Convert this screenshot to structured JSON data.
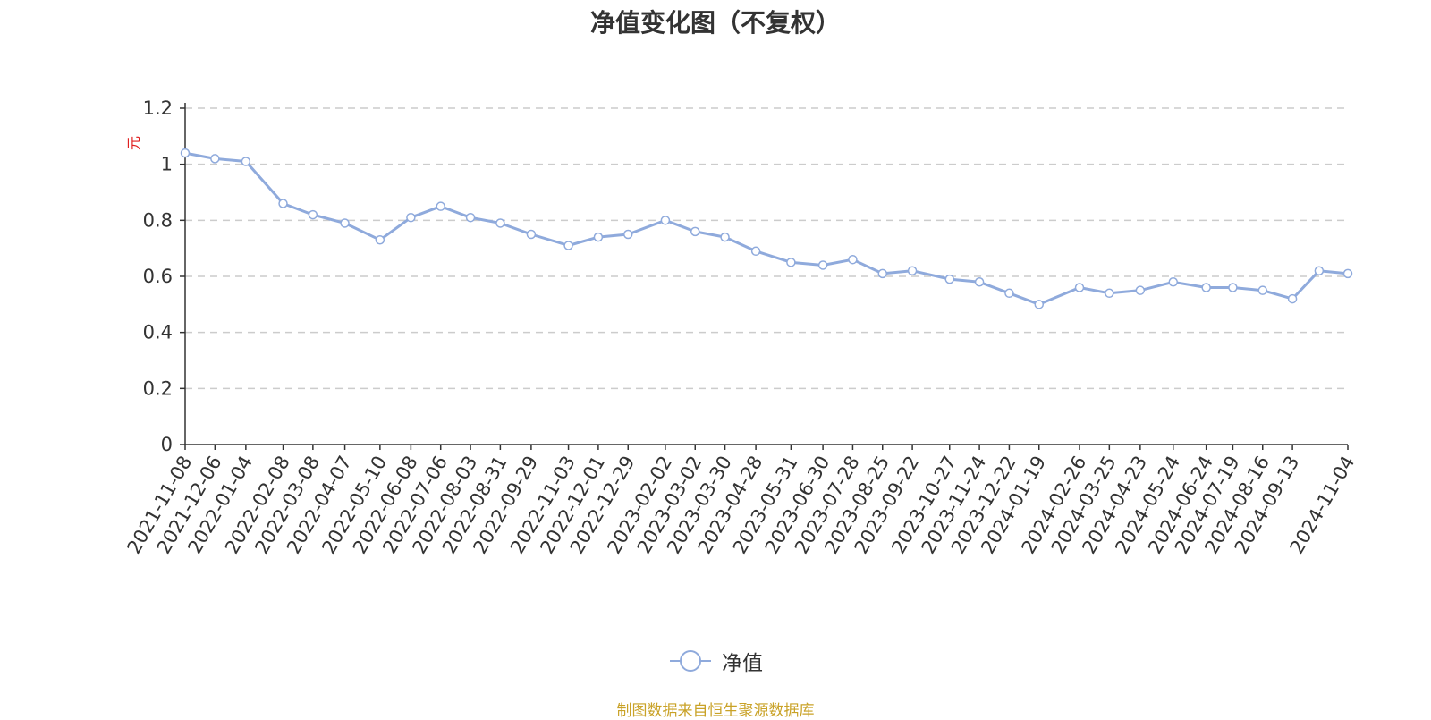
{
  "chart_data": {
    "type": "line",
    "title": "净值变化图（不复权）",
    "ylabel": "元",
    "ylim": [
      0,
      1.2
    ],
    "y_ticks": [
      0,
      0.2,
      0.4,
      0.6,
      0.8,
      1,
      1.2
    ],
    "y_tick_labels": [
      "0",
      "0.2",
      "0.4",
      "0.6",
      "0.8",
      "1",
      "1.2"
    ],
    "grid": true,
    "x_tick_labels": [
      "2021-11-08",
      "2021-12-06",
      "2022-01-04",
      "2022-02-08",
      "2022-03-08",
      "2022-04-07",
      "2022-05-10",
      "2022-06-08",
      "2022-07-06",
      "2022-08-03",
      "2022-08-31",
      "2022-09-29",
      "2022-11-03",
      "2022-12-01",
      "2022-12-29",
      "2023-02-02",
      "2023-03-02",
      "2023-03-30",
      "2023-04-28",
      "2023-05-31",
      "2023-06-30",
      "2023-07-28",
      "2023-08-25",
      "2023-09-22",
      "2023-10-27",
      "2023-11-24",
      "2023-12-22",
      "2024-01-19",
      "2024-02-26",
      "2024-03-25",
      "2024-04-23",
      "2024-05-24",
      "2024-06-24",
      "2024-07-19",
      "2024-08-16",
      "2024-09-13",
      "2024-11-04"
    ],
    "legend_position": "bottom-center",
    "series": [
      {
        "name": "净值",
        "color": "#8faadc",
        "x": [
          "2021-11-08",
          "2021-12-06",
          "2022-01-04",
          "2022-02-08",
          "2022-03-08",
          "2022-04-07",
          "2022-05-10",
          "2022-06-08",
          "2022-07-06",
          "2022-08-03",
          "2022-08-31",
          "2022-09-29",
          "2022-11-03",
          "2022-12-01",
          "2022-12-29",
          "2023-02-02",
          "2023-03-02",
          "2023-03-30",
          "2023-04-28",
          "2023-05-31",
          "2023-06-30",
          "2023-07-28",
          "2023-08-25",
          "2023-09-22",
          "2023-10-27",
          "2023-11-24",
          "2023-12-22",
          "2024-01-19",
          "2024-02-26",
          "2024-03-25",
          "2024-04-23",
          "2024-05-24",
          "2024-06-24",
          "2024-07-19",
          "2024-08-16",
          "2024-09-13",
          "2024-10-08",
          "2024-11-04"
        ],
        "values": [
          1.04,
          1.02,
          1.01,
          0.86,
          0.82,
          0.79,
          0.73,
          0.81,
          0.85,
          0.81,
          0.79,
          0.75,
          0.71,
          0.74,
          0.75,
          0.8,
          0.76,
          0.74,
          0.69,
          0.65,
          0.64,
          0.66,
          0.61,
          0.62,
          0.59,
          0.58,
          0.54,
          0.5,
          0.56,
          0.54,
          0.55,
          0.58,
          0.56,
          0.56,
          0.55,
          0.52,
          0.62,
          0.61
        ]
      }
    ]
  },
  "legend": {
    "label": "净值"
  },
  "footer": {
    "source": "制图数据来自恒生聚源数据库",
    "source_color": "#c9a227"
  }
}
